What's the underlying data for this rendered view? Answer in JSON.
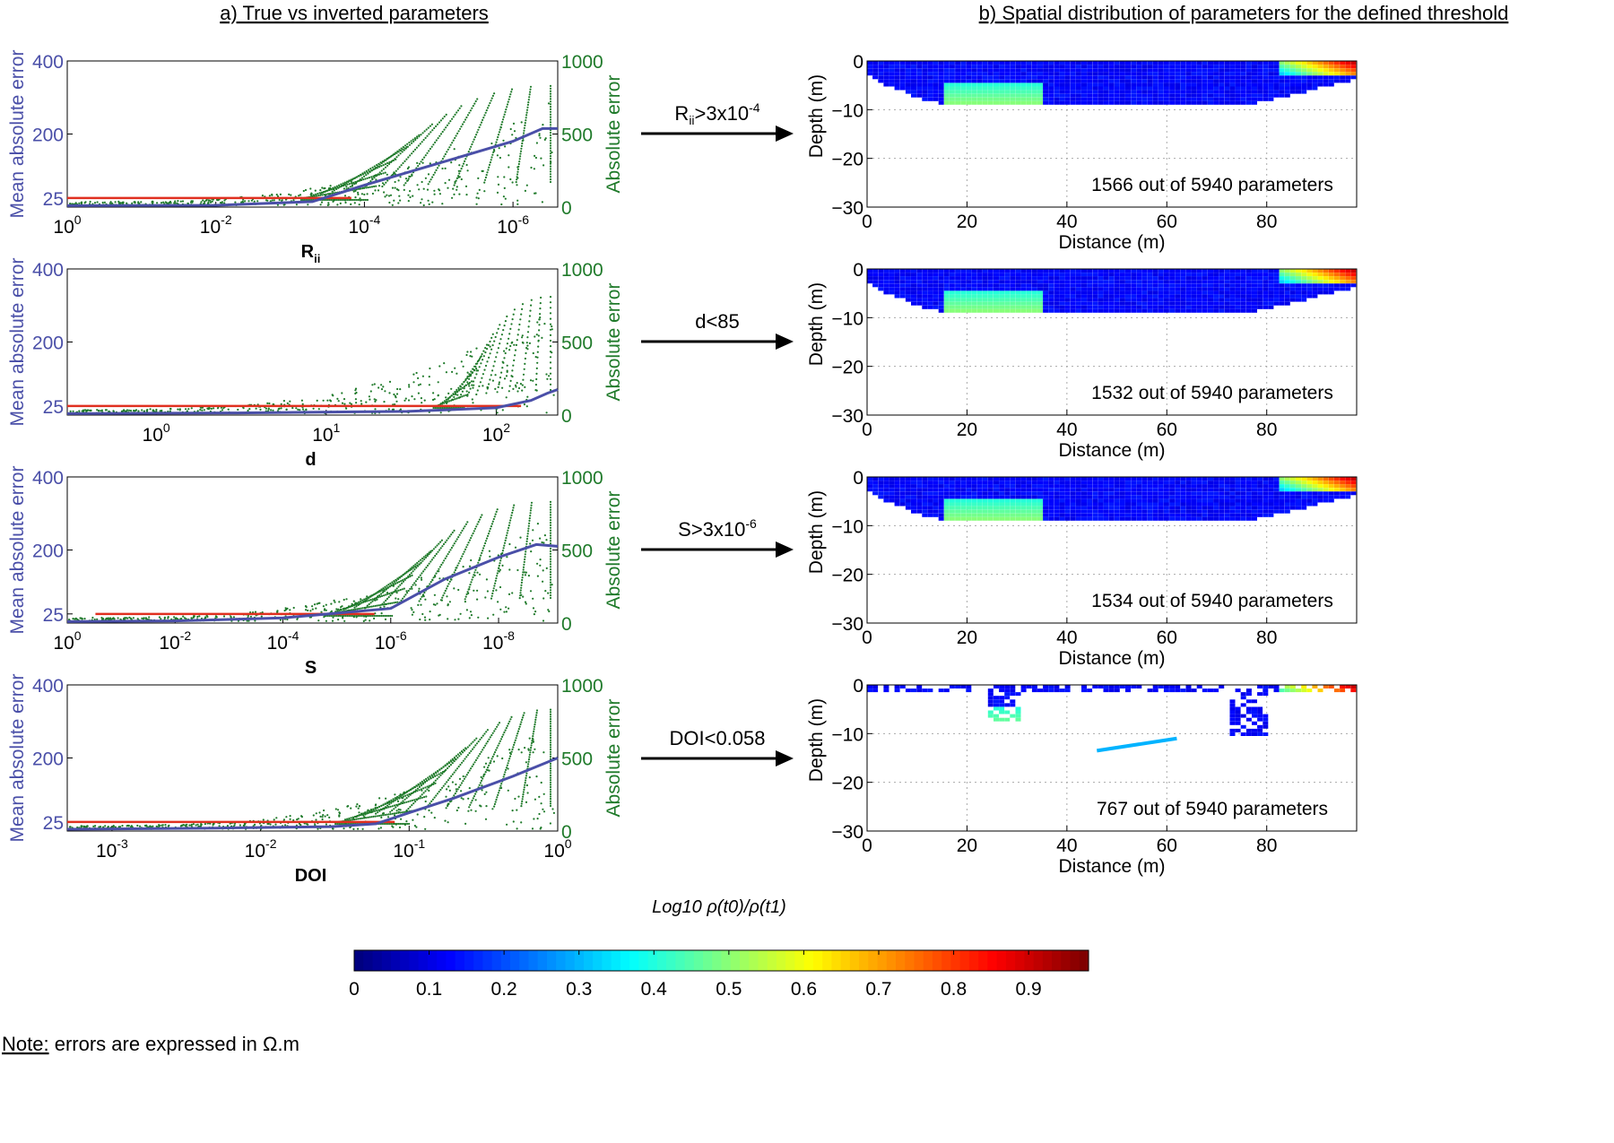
{
  "figure": {
    "title_left": "a) True vs inverted parameters",
    "title_right": "b) Spatial distribution of parameters for the defined threshold",
    "note_label": "Note:",
    "note_text": " errors are expressed in Ω.m",
    "colorbar_label": "Log10 ρ(t0)/ρ(t1)"
  },
  "chart_data": [
    {
      "type": "scatter",
      "panel": "left-1",
      "xlabel": "R",
      "xlabel_sub": "ii",
      "x_scale": "log",
      "x_reversed": true,
      "xlim": [
        1,
        2.5e-07
      ],
      "x_ticks": [
        1,
        0.01,
        0.0001,
        1e-06
      ],
      "x_tick_bases": [
        "10",
        "10",
        "10",
        "10"
      ],
      "x_tick_exps": [
        "0",
        "-2",
        "-4",
        "-6"
      ],
      "ylabel_left": "Mean absolute error",
      "yticks_left": [
        "25",
        "200",
        "400"
      ],
      "ylabel_right": "Absolute error",
      "yticks_right": [
        "0",
        "500",
        "1000"
      ],
      "mean_error_curve": [
        [
          1,
          4
        ],
        [
          0.01,
          5
        ],
        [
          0.0005,
          15
        ],
        [
          0.0001,
          60
        ],
        [
          1e-05,
          120
        ],
        [
          1e-06,
          180
        ],
        [
          4e-07,
          215
        ],
        [
          2.5e-07,
          215
        ]
      ],
      "threshold_line": 25,
      "threshold_extent": [
        1,
        0.00015
      ],
      "colors": {
        "mean": "#4a4fa8",
        "threshold": "#e03020",
        "scatter": "#1f7a2a"
      }
    },
    {
      "type": "scatter",
      "panel": "left-2",
      "xlabel": "d",
      "x_scale": "log",
      "x_reversed": false,
      "xlim": [
        0.3,
        230
      ],
      "x_ticks": [
        1,
        10,
        100
      ],
      "x_tick_bases": [
        "10",
        "10",
        "10"
      ],
      "x_tick_exps": [
        "0",
        "1",
        "2"
      ],
      "ylabel_left": "Mean absolute error",
      "yticks_left": [
        "25",
        "200",
        "400"
      ],
      "ylabel_right": "Absolute error",
      "yticks_right": [
        "0",
        "500",
        "1000"
      ],
      "mean_error_curve": [
        [
          0.3,
          4
        ],
        [
          3,
          6
        ],
        [
          30,
          10
        ],
        [
          100,
          20
        ],
        [
          160,
          40
        ],
        [
          200,
          60
        ],
        [
          230,
          70
        ]
      ],
      "threshold_line": 25,
      "threshold_extent": [
        0.3,
        140
      ],
      "colors": {
        "mean": "#4a4fa8",
        "threshold": "#e03020",
        "scatter": "#1f7a2a"
      }
    },
    {
      "type": "scatter",
      "panel": "left-3",
      "xlabel": "S",
      "x_scale": "log",
      "x_reversed": true,
      "xlim": [
        1,
        8e-10
      ],
      "x_ticks": [
        1,
        0.01,
        0.0001,
        1e-06,
        1e-08
      ],
      "x_tick_bases": [
        "10",
        "10",
        "10",
        "10",
        "10"
      ],
      "x_tick_exps": [
        "0",
        "-2",
        "-4",
        "-6",
        "-8"
      ],
      "ylabel_left": "Mean absolute error",
      "yticks_left": [
        "25",
        "200",
        "400"
      ],
      "ylabel_right": "Absolute error",
      "yticks_right": [
        "0",
        "500",
        "1000"
      ],
      "mean_error_curve": [
        [
          1,
          4
        ],
        [
          0.01,
          6
        ],
        [
          0.0001,
          14
        ],
        [
          1e-06,
          40
        ],
        [
          1e-07,
          120
        ],
        [
          1e-08,
          180
        ],
        [
          2e-09,
          215
        ],
        [
          8e-10,
          210
        ]
      ],
      "threshold_line": 25,
      "threshold_extent": [
        0.3,
        2e-06
      ],
      "colors": {
        "mean": "#4a4fa8",
        "threshold": "#e03020",
        "scatter": "#1f7a2a"
      }
    },
    {
      "type": "scatter",
      "panel": "left-4",
      "xlabel": "DOI",
      "x_scale": "log",
      "x_reversed": false,
      "xlim": [
        0.0005,
        1
      ],
      "x_ticks": [
        0.001,
        0.01,
        0.1,
        1
      ],
      "x_tick_bases": [
        "10",
        "10",
        "10",
        "10"
      ],
      "x_tick_exps": [
        "-3",
        "-2",
        "-1",
        "0"
      ],
      "ylabel_left": "Mean absolute error",
      "yticks_left": [
        "25",
        "200",
        "400"
      ],
      "ylabel_right": "Absolute error",
      "yticks_right": [
        "0",
        "500",
        "1000"
      ],
      "mean_error_curve": [
        [
          0.0005,
          5
        ],
        [
          0.005,
          8
        ],
        [
          0.03,
          12
        ],
        [
          0.06,
          20
        ],
        [
          0.1,
          50
        ],
        [
          0.2,
          90
        ],
        [
          0.5,
          150
        ],
        [
          1,
          200
        ]
      ],
      "threshold_line": 25,
      "threshold_extent": [
        0.0005,
        0.08
      ],
      "colors": {
        "mean": "#4a4fa8",
        "threshold": "#e03020",
        "scatter": "#1f7a2a"
      }
    }
  ],
  "maps": [
    {
      "arrow_label": "R",
      "arrow_sub": "ii",
      "arrow_rest": ">3x10",
      "arrow_exp": "-4",
      "count_text": "1566 out of 5940 parameters",
      "style": "full"
    },
    {
      "arrow_label": "d<85",
      "arrow_sub": "",
      "arrow_rest": "",
      "arrow_exp": "",
      "count_text": "1532 out of 5940 parameters",
      "style": "full"
    },
    {
      "arrow_label": "S>3x10",
      "arrow_sub": "",
      "arrow_rest": "",
      "arrow_exp": "-6",
      "count_text": "1534 out of 5940 parameters",
      "style": "full"
    },
    {
      "arrow_label": "DOI<0.058",
      "arrow_sub": "",
      "arrow_rest": "",
      "arrow_exp": "",
      "count_text": "767 out of 5940 parameters",
      "style": "sparse"
    }
  ],
  "map_axes": {
    "xlabel": "Distance (m)",
    "ylabel": "Depth (m)",
    "xlim": [
      0,
      98
    ],
    "ylim": [
      -30,
      0
    ],
    "x_ticks": [
      "0",
      "20",
      "40",
      "60",
      "80"
    ],
    "y_ticks": [
      "0",
      "−10",
      "−20",
      "−30"
    ]
  },
  "colorbar": {
    "range": [
      0,
      0.98
    ],
    "ticks": [
      "0",
      "0.1",
      "0.2",
      "0.3",
      "0.4",
      "0.5",
      "0.6",
      "0.7",
      "0.8",
      "0.9"
    ],
    "colormap": "jet"
  }
}
